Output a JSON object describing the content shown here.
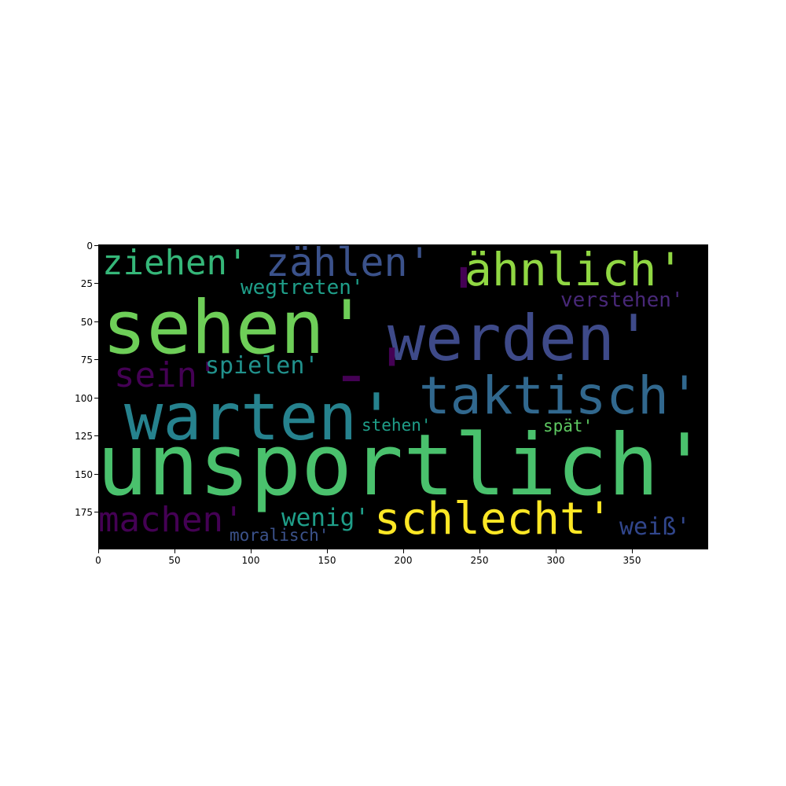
{
  "words": [
    {
      "text": "ziehen'",
      "color": "#35b779"
    },
    {
      "text": "zählen'",
      "color": "#3b528b"
    },
    {
      "text": "ähnlich'",
      "color": "#90d743"
    },
    {
      "text": "'",
      "color": "#440154"
    },
    {
      "text": "wegtreten'",
      "color": "#1f9e89"
    },
    {
      "text": "verstehen'",
      "color": "#482878"
    },
    {
      "text": "sehen'",
      "color": "#6ece58"
    },
    {
      "text": "werden'",
      "color": "#3e4a89"
    },
    {
      "text": "sein'",
      "color": "#440154"
    },
    {
      "text": "spielen'",
      "color": "#21918c"
    },
    {
      "text": "-'",
      "color": "#440154"
    },
    {
      "text": "taktisch'",
      "color": "#31688e"
    },
    {
      "text": "warten'",
      "color": "#26828e"
    },
    {
      "text": "stehen'",
      "color": "#1f9e89"
    },
    {
      "text": "spät'",
      "color": "#5ec962"
    },
    {
      "text": "unsportlich'",
      "color": "#4ac16d"
    },
    {
      "text": "machen'",
      "color": "#440154"
    },
    {
      "text": "wenig'",
      "color": "#1f9e89"
    },
    {
      "text": "schlecht'",
      "color": "#fde725"
    },
    {
      "text": "weiß'",
      "color": "#31468c"
    },
    {
      "text": "moralisch'",
      "color": "#3b528b"
    }
  ],
  "axes": {
    "x_ticks": [
      "0",
      "50",
      "100",
      "150",
      "200",
      "250",
      "300",
      "350"
    ],
    "y_ticks": [
      "0",
      "25",
      "50",
      "75",
      "100",
      "125",
      "150",
      "175"
    ]
  }
}
